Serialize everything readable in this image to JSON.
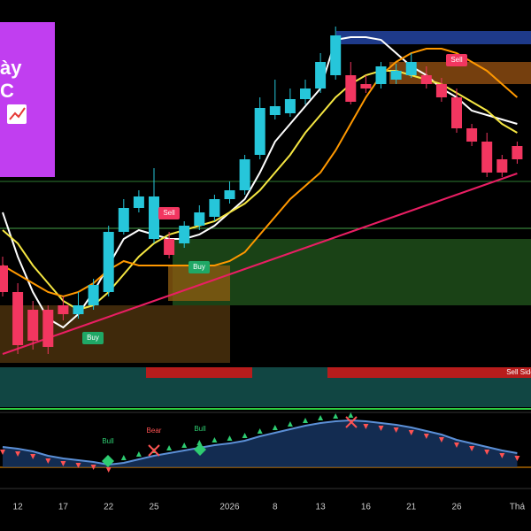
{
  "chart_data": {
    "type": "candlestick",
    "categories": [
      null,
      "12",
      null,
      null,
      "17",
      null,
      null,
      "22",
      null,
      null,
      "25",
      null,
      null,
      null,
      null,
      "2026",
      null,
      null,
      "8",
      null,
      null,
      "13",
      null,
      null,
      "16",
      null,
      null,
      "21",
      null,
      null,
      "26",
      null,
      null,
      null,
      "Thá"
    ],
    "open": [
      165,
      135,
      115,
      115,
      120,
      110,
      120,
      135,
      203,
      230,
      195,
      195,
      190,
      210,
      220,
      240,
      250,
      290,
      335,
      337,
      353,
      365,
      380,
      380,
      370,
      370,
      375,
      380,
      380,
      370,
      355,
      320,
      305,
      285,
      300
    ],
    "close": [
      135,
      75,
      80,
      73,
      110,
      120,
      143,
      203,
      230,
      243,
      243,
      177,
      210,
      225,
      240,
      250,
      285,
      343,
      345,
      353,
      365,
      395,
      425,
      350,
      365,
      390,
      385,
      395,
      370,
      355,
      320,
      305,
      270,
      270,
      285
    ],
    "high": [
      175,
      145,
      125,
      120,
      130,
      135,
      150,
      210,
      240,
      250,
      275,
      203,
      215,
      233,
      245,
      260,
      290,
      355,
      375,
      365,
      375,
      405,
      435,
      395,
      380,
      395,
      393,
      405,
      390,
      377,
      365,
      325,
      315,
      290,
      305
    ],
    "low": [
      130,
      65,
      70,
      65,
      103,
      105,
      115,
      130,
      200,
      225,
      190,
      173,
      185,
      205,
      215,
      235,
      245,
      285,
      330,
      333,
      347,
      360,
      375,
      347,
      360,
      365,
      370,
      377,
      365,
      350,
      315,
      300,
      265,
      265,
      280
    ],
    "ylim": [
      0,
      465
    ],
    "up_color": "#26c6da",
    "down_color": "#f23660",
    "overlays": [
      {
        "color": "#ffffff",
        "values": [
          225,
          175,
          135,
          105,
          95,
          110,
          135,
          165,
          195,
          205,
          200,
          195,
          195,
          200,
          210,
          225,
          240,
          270,
          305,
          325,
          345,
          365,
          420,
          423,
          423,
          420,
          405,
          390,
          380,
          365,
          355,
          340,
          335,
          330,
          325
        ]
      },
      {
        "color": "#f5e642",
        "values": [
          205,
          190,
          165,
          145,
          125,
          115,
          120,
          135,
          155,
          175,
          190,
          200,
          205,
          210,
          215,
          225,
          235,
          250,
          270,
          290,
          315,
          335,
          355,
          370,
          380,
          385,
          385,
          380,
          375,
          370,
          360,
          350,
          340,
          325,
          315
        ]
      },
      {
        "color": "#ff9800",
        "values": [
          165,
          155,
          145,
          135,
          130,
          135,
          145,
          160,
          170,
          165,
          165,
          165,
          165,
          165,
          165,
          170,
          180,
          200,
          220,
          240,
          255,
          270,
          295,
          325,
          355,
          380,
          395,
          405,
          410,
          410,
          405,
          395,
          385,
          370,
          355
        ]
      },
      {
        "color": "#e91e63",
        "values": [
          65,
          71,
          77,
          83,
          89,
          95,
          101,
          107,
          113,
          119,
          125,
          131,
          137,
          143,
          149,
          155,
          161,
          167,
          173,
          179,
          185,
          191,
          197,
          203,
          209,
          215,
          221,
          227,
          233,
          239,
          245,
          251,
          257,
          263,
          269
        ]
      }
    ],
    "oscillator": {
      "type": "line",
      "color": "#5b8fd6",
      "ylim": [
        0,
        75
      ],
      "values": [
        40,
        38,
        35,
        30,
        27,
        25,
        23,
        20,
        22,
        26,
        30,
        33,
        36,
        39,
        42,
        44,
        47,
        52,
        56,
        60,
        64,
        67,
        69,
        70,
        69,
        67,
        65,
        62,
        58,
        54,
        48,
        44,
        40,
        36,
        33
      ]
    },
    "annotations": [
      "Buy",
      "Buy",
      "Sell",
      "Sell",
      "Bull",
      "Bear",
      "Bull",
      "Sell Side"
    ],
    "logo_text": [
      "ày",
      "C"
    ]
  }
}
